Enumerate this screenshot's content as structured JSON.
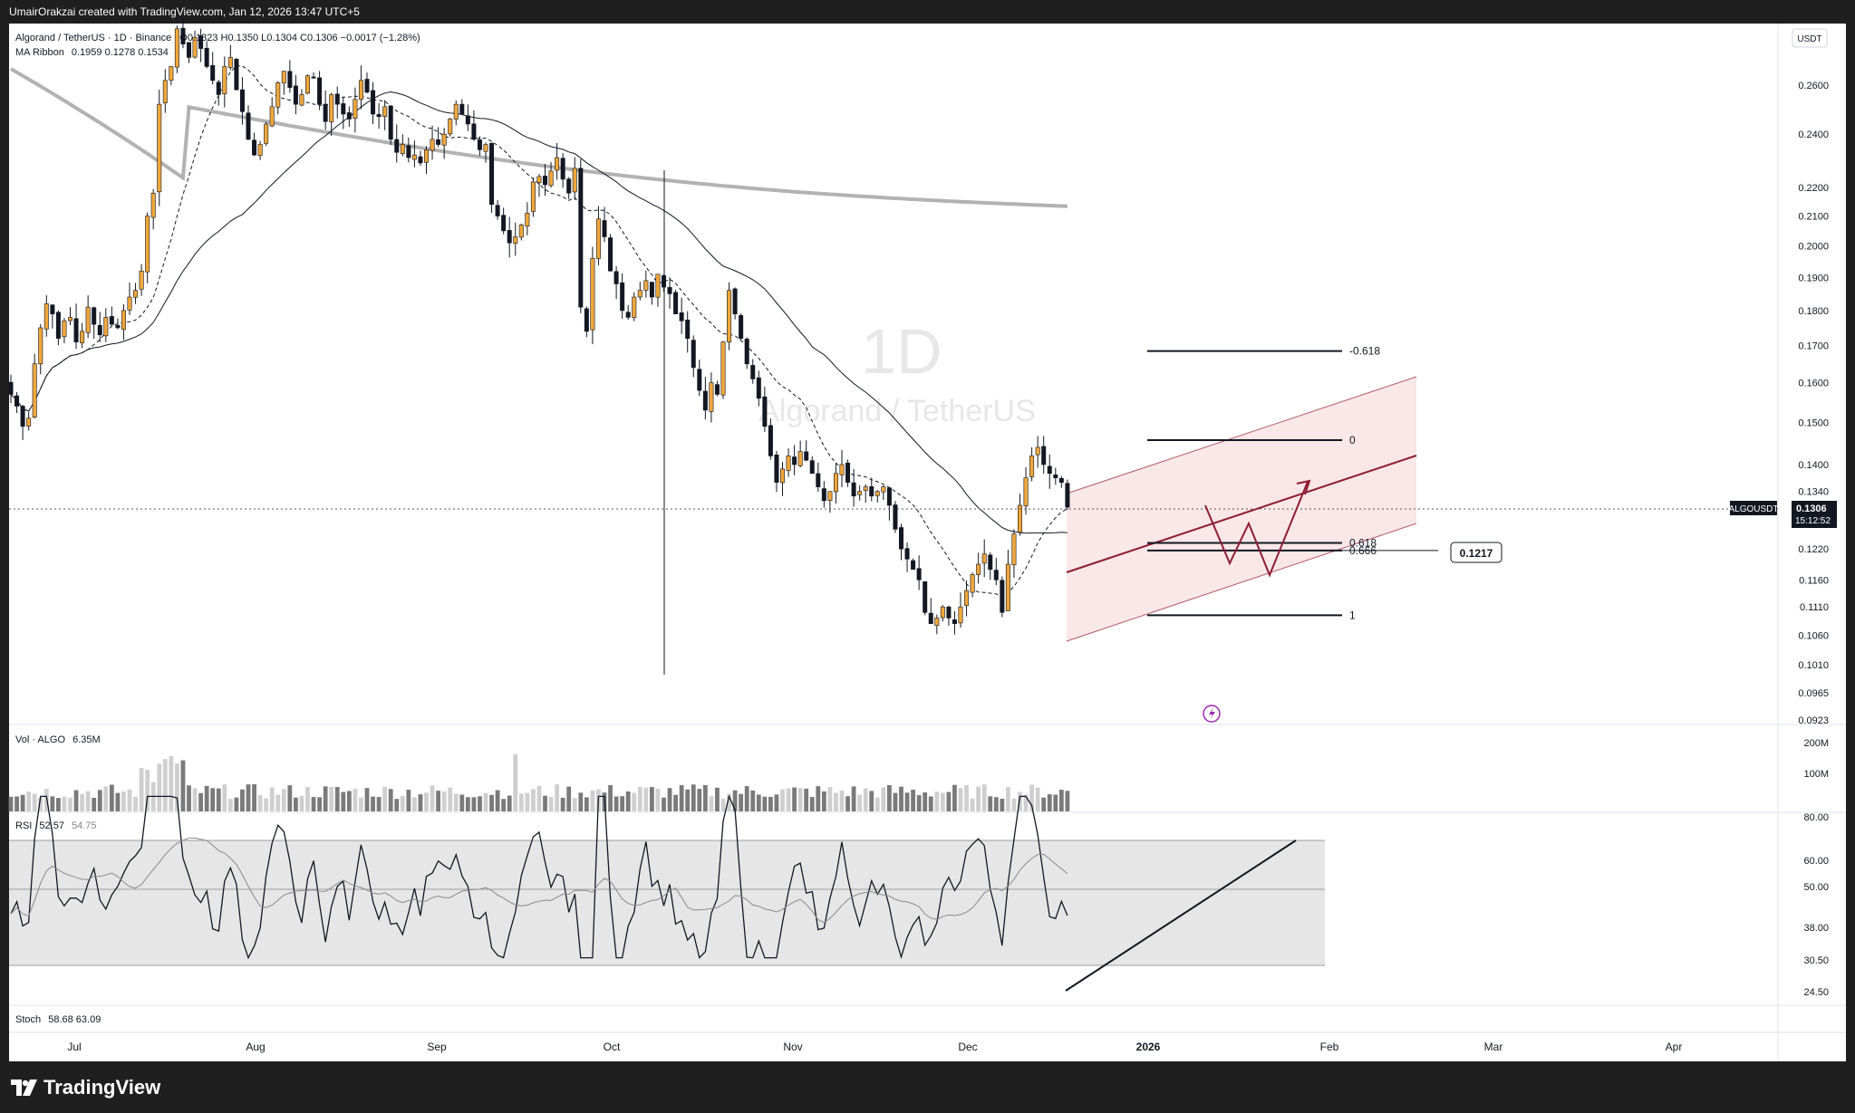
{
  "header": {
    "credit": "UmairOrakzai created with TradingView.com, Jan 12, 2026 13:47 UTC+5",
    "symbol_line": "Algorand / TetherUS · 1D · Binance",
    "ohlc": "O0.1323 H0.1350 L0.1304 C0.1306 −0.0017 (−1.28%)",
    "ribbon_label": "MA Ribbon",
    "ribbon_values": "0.1959 0.1278 0.1534"
  },
  "watermark": {
    "interval": "1D",
    "pair": "Algorand / TetherUS"
  },
  "price_axis": {
    "currency": "USDT",
    "ticks": [
      "0.2600",
      "0.2400",
      "0.2200",
      "0.2100",
      "0.2000",
      "0.1900",
      "0.1800",
      "0.1700",
      "0.1600",
      "0.1500",
      "0.1400",
      "0.1340",
      "0.1220",
      "0.1160",
      "0.1110",
      "0.1060",
      "0.1010",
      "0.0965",
      "0.0923"
    ],
    "last_symbol": "ALGOUSDT",
    "last_price": "0.1306",
    "countdown": "15:12:52"
  },
  "fib_levels": [
    {
      "label": "-0.618",
      "price": 0.1685
    },
    {
      "label": "0",
      "price": 0.1457
    },
    {
      "label": "0.618",
      "price": 0.1232
    },
    {
      "label": "0.666",
      "price": 0.1217
    },
    {
      "label": "1",
      "price": 0.1095
    }
  ],
  "level_box": "0.1217",
  "volume": {
    "label": "Vol · ALGO",
    "value": "6.35M",
    "ticks": [
      "200M",
      "100M"
    ]
  },
  "rsi": {
    "label": "RSI",
    "values": "52.57",
    "ma": "54.75",
    "ticks": [
      "80.00",
      "60.00",
      "50.00",
      "38.00",
      "30.50",
      "24.50"
    ]
  },
  "stoch": {
    "label": "Stoch",
    "values": "58.68  63.09"
  },
  "time_axis": [
    "Jul",
    "Aug",
    "Sep",
    "Oct",
    "Nov",
    "Dec",
    "2026",
    "Feb",
    "Mar",
    "Apr"
  ],
  "brand": "TradingView",
  "colors": {
    "bull": "#f0a73c",
    "bear": "#131722",
    "ma_ribbon_long": "#b2b2b2",
    "channel": "#8e1d35",
    "channel_fill": "#f8dadc"
  },
  "chart_data": {
    "type": "candlestick",
    "series_note": "",
    "x_dates_start": "2025-06-17",
    "ylim": [
      0.0923,
      0.265
    ],
    "candles_close": [
      0.157,
      0.154,
      0.149,
      0.151,
      0.165,
      0.175,
      0.182,
      0.179,
      0.172,
      0.177,
      0.178,
      0.171,
      0.174,
      0.181,
      0.176,
      0.173,
      0.178,
      0.176,
      0.175,
      0.18,
      0.184,
      0.186,
      0.192,
      0.21,
      0.218,
      0.252,
      0.262,
      0.268,
      0.285,
      0.278,
      0.272,
      0.281,
      0.276,
      0.268,
      0.262,
      0.256,
      0.268,
      0.272,
      0.258,
      0.249,
      0.238,
      0.232,
      0.236,
      0.244,
      0.251,
      0.261,
      0.266,
      0.259,
      0.252,
      0.256,
      0.264,
      0.263,
      0.252,
      0.245,
      0.256,
      0.252,
      0.248,
      0.246,
      0.254,
      0.262,
      0.257,
      0.248,
      0.247,
      0.251,
      0.238,
      0.233,
      0.236,
      0.231,
      0.232,
      0.229,
      0.234,
      0.238,
      0.236,
      0.24,
      0.246,
      0.252,
      0.248,
      0.244,
      0.238,
      0.234,
      0.236,
      0.214,
      0.21,
      0.205,
      0.201,
      0.203,
      0.207,
      0.211,
      0.222,
      0.224,
      0.221,
      0.226,
      0.231,
      0.223,
      0.218,
      0.227,
      0.181,
      0.174,
      0.196,
      0.209,
      0.203,
      0.192,
      0.188,
      0.18,
      0.178,
      0.184,
      0.186,
      0.189,
      0.184,
      0.191,
      0.187,
      0.185,
      0.179,
      0.177,
      0.172,
      0.164,
      0.158,
      0.153,
      0.16,
      0.157,
      0.171,
      0.186,
      0.179,
      0.172,
      0.165,
      0.161,
      0.156,
      0.149,
      0.142,
      0.136,
      0.139,
      0.142,
      0.14,
      0.143,
      0.141,
      0.138,
      0.135,
      0.132,
      0.134,
      0.138,
      0.14,
      0.136,
      0.133,
      0.134,
      0.135,
      0.133,
      0.134,
      0.135,
      0.131,
      0.126,
      0.122,
      0.12,
      0.118,
      0.116,
      0.11,
      0.108,
      0.109,
      0.111,
      0.109,
      0.108,
      0.111,
      0.114,
      0.117,
      0.119,
      0.121,
      0.118,
      0.116,
      0.11,
      0.119,
      0.125,
      0.131,
      0.137,
      0.142,
      0.144,
      0.14,
      0.138,
      0.137,
      0.136,
      0.1306
    ],
    "ma_ribbon": [
      {
        "name": "",
        "style": "dashed",
        "last": 0.1278
      },
      {
        "name": "",
        "style": "solid",
        "last": 0.1534
      },
      {
        "name": "",
        "style": "thick-gray",
        "last": 0.1959
      }
    ],
    "rsi_ylim": [
      20,
      90
    ]
  }
}
